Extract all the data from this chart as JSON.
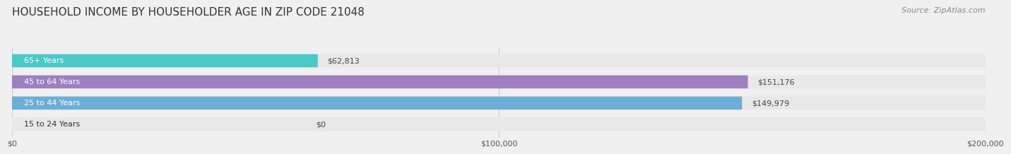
{
  "title": "HOUSEHOLD INCOME BY HOUSEHOLDER AGE IN ZIP CODE 21048",
  "source": "Source: ZipAtlas.com",
  "categories": [
    "15 to 24 Years",
    "25 to 44 Years",
    "45 to 64 Years",
    "65+ Years"
  ],
  "values": [
    0,
    149979,
    151176,
    62813
  ],
  "bar_colors": [
    "#f08080",
    "#6baed6",
    "#9e7fbf",
    "#4bc8c8"
  ],
  "label_texts": [
    "$0",
    "$149,979",
    "$151,176",
    "$62,813"
  ],
  "xlim": [
    0,
    200000
  ],
  "xtick_values": [
    0,
    100000,
    200000
  ],
  "xtick_labels": [
    "$0",
    "$100,000",
    "$200,000"
  ],
  "background_color": "#f0f0f0",
  "bar_bg_color": "#e8e8e8",
  "title_fontsize": 11,
  "source_fontsize": 8,
  "label_fontsize": 8,
  "tick_fontsize": 8,
  "category_fontsize": 8
}
